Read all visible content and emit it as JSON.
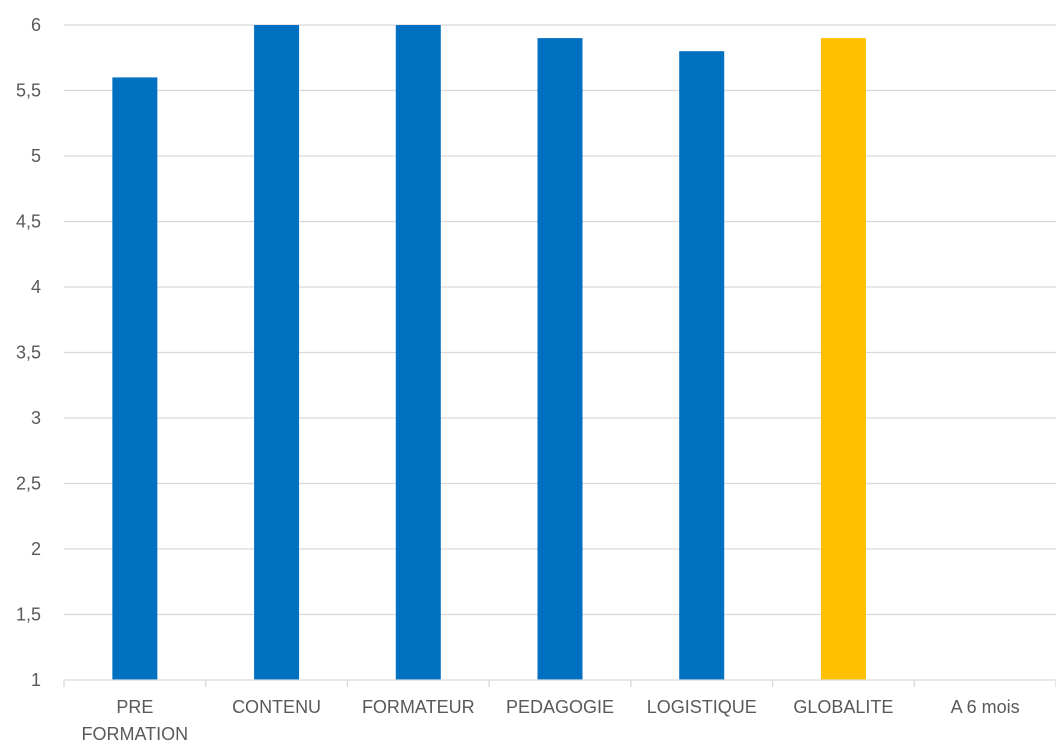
{
  "chart_data": {
    "type": "bar",
    "title": "",
    "xlabel": "",
    "ylabel": "",
    "categories": [
      [
        "PRE",
        "FORMATION"
      ],
      [
        "CONTENU"
      ],
      [
        "FORMATEUR"
      ],
      [
        "PEDAGOGIE"
      ],
      [
        "LOGISTIQUE"
      ],
      [
        "GLOBALITE"
      ],
      [
        "A 6 mois"
      ]
    ],
    "values": [
      5.6,
      6.0,
      6.0,
      5.9,
      5.8,
      5.9,
      null
    ],
    "bar_colors": [
      "#0070c0",
      "#0070c0",
      "#0070c0",
      "#0070c0",
      "#0070c0",
      "#ffc000",
      "#0070c0"
    ],
    "ylim": [
      1,
      6
    ],
    "yticks": [
      "1",
      "1,5",
      "2",
      "2,5",
      "3",
      "3,5",
      "4",
      "4,5",
      "5",
      "5,5",
      "6"
    ],
    "ytick_values": [
      1,
      1.5,
      2,
      2.5,
      3,
      3.5,
      4,
      4.5,
      5,
      5.5,
      6
    ],
    "grid": true,
    "legend": "none",
    "colors": {
      "gridline": "#d9d9d9",
      "axis_text": "#595959"
    }
  }
}
